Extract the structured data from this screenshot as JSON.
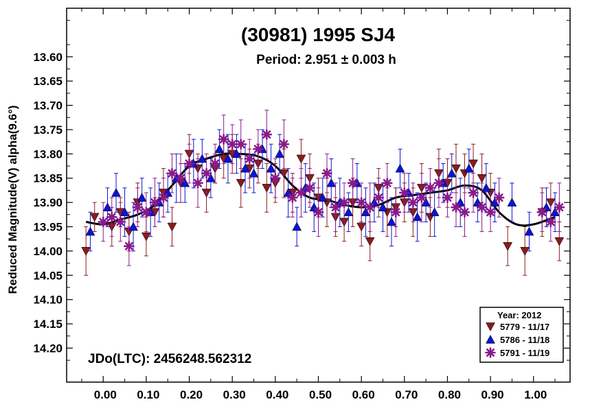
{
  "chart_data": {
    "type": "scatter",
    "title": "(30981) 1995 SJ4",
    "subtitle": "Period: 2.951 ± 0.003 h",
    "ylabel": "Reduced Magnitude(V) alpha(9.6°)",
    "xlabel": "",
    "annotation": "JDo(LTC): 2456248.562312",
    "legend_title": "Year: 2012",
    "xlim": [
      -0.085,
      1.085
    ],
    "ylim": [
      13.5,
      14.27
    ],
    "y_inverted": true,
    "x_ticks": [
      0.0,
      0.1,
      0.2,
      0.3,
      0.4,
      0.5,
      0.6,
      0.7,
      0.8,
      0.9,
      1.0
    ],
    "x_tick_labels": [
      "0.00",
      "0.10",
      "0.20",
      "0.30",
      "0.40",
      "0.50",
      "0.60",
      "0.70",
      "0.80",
      "0.90",
      "1.00"
    ],
    "y_ticks": [
      13.6,
      13.65,
      13.7,
      13.75,
      13.8,
      13.85,
      13.9,
      13.95,
      14.0,
      14.05,
      14.1,
      14.15,
      14.2
    ],
    "y_tick_labels": [
      "13.60",
      "13.65",
      "13.70",
      "13.75",
      "13.80",
      "13.85",
      "13.90",
      "13.95",
      "14.00",
      "14.05",
      "14.10",
      "14.15",
      "14.20"
    ],
    "fit_curve": {
      "x": [
        -0.04,
        0.0,
        0.04,
        0.08,
        0.12,
        0.16,
        0.2,
        0.24,
        0.28,
        0.32,
        0.36,
        0.4,
        0.44,
        0.48,
        0.52,
        0.56,
        0.6,
        0.64,
        0.68,
        0.72,
        0.76,
        0.8,
        0.84,
        0.88,
        0.92,
        0.96,
        1.0,
        1.05
      ],
      "y": [
        13.94,
        13.945,
        13.935,
        13.925,
        13.905,
        13.865,
        13.825,
        13.81,
        13.8,
        13.8,
        13.805,
        13.825,
        13.865,
        13.89,
        13.895,
        13.905,
        13.91,
        13.905,
        13.89,
        13.885,
        13.88,
        13.875,
        13.865,
        13.875,
        13.92,
        13.945,
        13.945,
        13.93
      ]
    },
    "series": [
      {
        "name": "5779 - 11/17",
        "marker": "triangle-down",
        "color": "#8b1a1a",
        "x": [
          -0.04,
          -0.02,
          0.02,
          0.04,
          0.06,
          0.08,
          0.1,
          0.12,
          0.14,
          0.16,
          0.18,
          0.2,
          0.22,
          0.24,
          0.26,
          0.28,
          0.3,
          0.32,
          0.34,
          0.36,
          0.38,
          0.4,
          0.42,
          0.44,
          0.46,
          0.48,
          0.5,
          0.52,
          0.54,
          0.56,
          0.58,
          0.6,
          0.62,
          0.64,
          0.66,
          0.68,
          0.7,
          0.72,
          0.74,
          0.76,
          0.78,
          0.8,
          0.82,
          0.84,
          0.86,
          0.88,
          0.9,
          0.94,
          0.98,
          1.02,
          1.04,
          1.06
        ],
        "y": [
          14.0,
          13.93,
          13.95,
          13.92,
          13.96,
          13.9,
          13.97,
          13.92,
          13.88,
          13.95,
          13.86,
          13.8,
          13.83,
          13.88,
          13.83,
          13.81,
          13.8,
          13.86,
          13.83,
          13.82,
          13.87,
          13.86,
          13.84,
          13.88,
          13.81,
          13.85,
          13.89,
          13.9,
          13.93,
          13.94,
          13.9,
          13.95,
          13.98,
          13.87,
          13.92,
          13.91,
          13.9,
          13.92,
          13.87,
          13.93,
          13.84,
          13.86,
          13.83,
          13.84,
          13.82,
          13.85,
          13.88,
          13.99,
          14.0,
          13.92,
          13.9,
          13.98
        ],
        "err": [
          0.05,
          0.03,
          0.04,
          0.03,
          0.04,
          0.04,
          0.04,
          0.03,
          0.05,
          0.04,
          0.04,
          0.04,
          0.03,
          0.04,
          0.03,
          0.04,
          0.04,
          0.05,
          0.04,
          0.04,
          0.05,
          0.04,
          0.05,
          0.04,
          0.04,
          0.05,
          0.04,
          0.05,
          0.04,
          0.04,
          0.05,
          0.04,
          0.04,
          0.04,
          0.05,
          0.04,
          0.04,
          0.05,
          0.05,
          0.04,
          0.05,
          0.05,
          0.05,
          0.04,
          0.04,
          0.05,
          0.04,
          0.04,
          0.05,
          0.05,
          0.04,
          0.04
        ]
      },
      {
        "name": "5786 - 11/18",
        "marker": "triangle-up",
        "color": "#0a14d4",
        "x": [
          -0.03,
          0.01,
          0.03,
          0.05,
          0.07,
          0.09,
          0.11,
          0.13,
          0.15,
          0.17,
          0.19,
          0.21,
          0.23,
          0.25,
          0.27,
          0.29,
          0.31,
          0.33,
          0.35,
          0.37,
          0.39,
          0.41,
          0.43,
          0.45,
          0.47,
          0.49,
          0.51,
          0.53,
          0.55,
          0.57,
          0.59,
          0.61,
          0.63,
          0.65,
          0.67,
          0.69,
          0.71,
          0.73,
          0.75,
          0.77,
          0.79,
          0.81,
          0.83,
          0.85,
          0.87,
          0.89,
          0.91,
          0.95,
          0.99,
          1.03,
          1.05
        ],
        "y": [
          13.96,
          13.91,
          13.88,
          13.92,
          13.95,
          13.89,
          13.92,
          13.9,
          13.88,
          13.85,
          13.86,
          13.82,
          13.81,
          13.85,
          13.79,
          13.81,
          13.8,
          13.83,
          13.84,
          13.79,
          13.83,
          13.8,
          13.88,
          13.95,
          13.87,
          13.91,
          13.89,
          13.86,
          13.9,
          13.92,
          13.86,
          13.92,
          13.9,
          13.91,
          13.94,
          13.83,
          13.88,
          13.93,
          13.9,
          13.92,
          13.86,
          13.84,
          13.9,
          13.83,
          13.9,
          13.87,
          13.9,
          13.9,
          13.96,
          13.91,
          13.92
        ],
        "err": [
          0.04,
          0.04,
          0.04,
          0.05,
          0.05,
          0.04,
          0.05,
          0.04,
          0.04,
          0.05,
          0.04,
          0.05,
          0.04,
          0.04,
          0.04,
          0.05,
          0.04,
          0.05,
          0.04,
          0.04,
          0.05,
          0.04,
          0.05,
          0.04,
          0.05,
          0.05,
          0.04,
          0.05,
          0.05,
          0.04,
          0.04,
          0.05,
          0.04,
          0.05,
          0.05,
          0.04,
          0.04,
          0.05,
          0.04,
          0.05,
          0.04,
          0.04,
          0.05,
          0.04,
          0.04,
          0.05,
          0.04,
          0.04,
          0.04,
          0.04,
          0.04
        ]
      },
      {
        "name": "5791 - 11/19",
        "marker": "asterisk",
        "color": "#8a1a8a",
        "x": [
          0.0,
          0.02,
          0.04,
          0.06,
          0.08,
          0.1,
          0.12,
          0.14,
          0.16,
          0.18,
          0.2,
          0.22,
          0.24,
          0.26,
          0.28,
          0.3,
          0.32,
          0.34,
          0.36,
          0.38,
          0.4,
          0.42,
          0.44,
          0.46,
          0.48,
          0.5,
          0.52,
          0.54,
          0.56,
          0.58,
          0.6,
          0.62,
          0.64,
          0.66,
          0.68,
          0.7,
          0.72,
          0.74,
          0.76,
          0.78,
          0.8,
          0.82,
          0.84,
          0.86,
          0.88,
          0.9,
          0.92,
          1.02,
          1.04,
          1.06
        ],
        "y": [
          13.94,
          13.93,
          13.94,
          13.99,
          13.91,
          13.92,
          13.9,
          13.89,
          13.84,
          13.85,
          13.82,
          13.86,
          13.84,
          13.82,
          13.77,
          13.78,
          13.78,
          13.81,
          13.79,
          13.76,
          13.85,
          13.78,
          13.89,
          13.88,
          13.87,
          13.92,
          13.84,
          13.91,
          13.9,
          13.86,
          13.9,
          13.91,
          13.89,
          13.86,
          13.92,
          13.88,
          13.9,
          13.89,
          13.87,
          13.86,
          13.89,
          13.91,
          13.92,
          13.88,
          13.91,
          13.92,
          13.89,
          13.92,
          13.94,
          13.91
        ],
        "err": [
          0.04,
          0.04,
          0.04,
          0.04,
          0.04,
          0.04,
          0.05,
          0.04,
          0.04,
          0.05,
          0.04,
          0.05,
          0.04,
          0.04,
          0.05,
          0.04,
          0.05,
          0.04,
          0.04,
          0.05,
          0.04,
          0.05,
          0.04,
          0.05,
          0.04,
          0.05,
          0.04,
          0.05,
          0.04,
          0.05,
          0.04,
          0.05,
          0.04,
          0.04,
          0.05,
          0.04,
          0.04,
          0.05,
          0.04,
          0.05,
          0.04,
          0.04,
          0.05,
          0.04,
          0.05,
          0.04,
          0.04,
          0.04,
          0.04,
          0.05
        ]
      }
    ]
  }
}
